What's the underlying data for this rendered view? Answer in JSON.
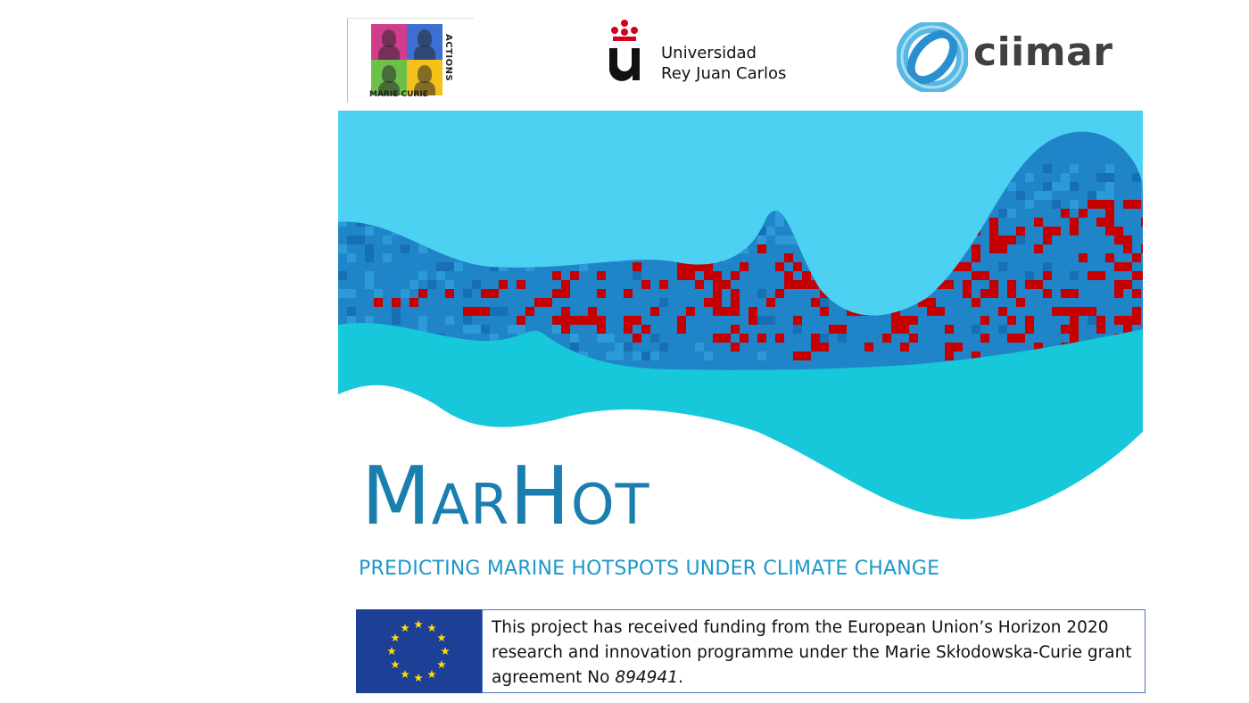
{
  "logos": {
    "mca": {
      "line1": "ACTIONS",
      "line2": "MARIE CURIE"
    },
    "urjc": {
      "line1": "Universidad",
      "line2": "Rey Juan Carlos"
    },
    "ciimar": {
      "name": "ciimar"
    }
  },
  "project": {
    "title_cap1": "M",
    "title_small1": "AR",
    "title_cap2": "H",
    "title_small2": "OT",
    "subtitle": "PREDICTING MARINE HOTSPOTS UNDER CLIMATE CHANGE"
  },
  "funding": {
    "text_before": "This project has received funding from the European Union’s Horizon 2020 research and innovation programme under the Marie Skłodowska-Curie grant agreement No ",
    "grant_number": "894941",
    "text_after": "."
  },
  "colors": {
    "title": "#1a7fae",
    "subtitle": "#1c98c9",
    "sky_wave": "#4dd1f2",
    "deep_wave": "#1f84c8",
    "front_wave": "#17c7da",
    "hotspot_red": "#c40000",
    "eu_blue": "#1e3f96",
    "eu_star": "#ffdd00"
  },
  "icons": [
    "marie-curie-actions-logo",
    "urjc-crown-logo",
    "ciimar-ring-logo",
    "eu-flag-icon"
  ]
}
